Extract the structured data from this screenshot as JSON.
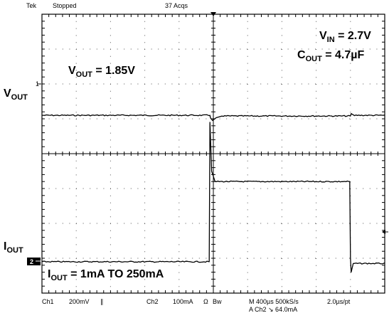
{
  "header": {
    "brand": "Tek",
    "status": "Stopped",
    "acquisitions": "37 Acqs"
  },
  "footer": {
    "line1": [
      "Ch1",
      "200mV",
      "∥",
      "Ch2",
      "100mA",
      "Ω",
      "Bw",
      "M 400µs 500kS/s",
      "2.0µs/pt"
    ],
    "line2": "A  Ch2  ↘  64.0mA"
  },
  "labels": {
    "vout_level": {
      "prefix": "V",
      "sub": "OUT",
      "suffix": " = 1.85V"
    },
    "vin": {
      "prefix": "V",
      "sub": "IN",
      "suffix": " = 2.7V"
    },
    "cout": {
      "prefix": "C",
      "sub": "OUT",
      "suffix": " = 4.7µF"
    },
    "vout_axis": {
      "prefix": "V",
      "sub": "OUT"
    },
    "iout_axis": {
      "prefix": "I",
      "sub": "OUT"
    },
    "iout_step": {
      "prefix": "I",
      "sub": "OUT",
      "suffix": " = 1mA TO 250mA"
    }
  },
  "markers": {
    "ch1": "1",
    "ch2": "2"
  },
  "chart_data": {
    "type": "line",
    "grid": true,
    "x_divisions": 10,
    "y_divisions": 8,
    "time_per_division": "400µs",
    "series": [
      {
        "name": "VOUT",
        "volts_per_div": "200mV",
        "points": [
          [
            0,
            1.1
          ],
          [
            4.9,
            1.1
          ],
          [
            4.92,
            1.02
          ],
          [
            4.98,
            0.95
          ],
          [
            5.08,
            1.03
          ],
          [
            5.25,
            1.08
          ],
          [
            9.0,
            1.08
          ],
          [
            9.02,
            1.15
          ],
          [
            9.12,
            1.09
          ],
          [
            10,
            1.1
          ]
        ]
      },
      {
        "name": "IOUT",
        "amps_per_div": "100mA",
        "points": [
          [
            0,
            -3.1
          ],
          [
            4.88,
            -3.1
          ],
          [
            4.9,
            0.9
          ],
          [
            4.95,
            -0.5
          ],
          [
            5.05,
            -0.75
          ],
          [
            10,
            -0.75
          ]
        ],
        "alternate_segment": {
          "points": [
            [
              5.05,
              -0.8
            ],
            [
              8.98,
              -0.8
            ],
            [
              9.0,
              -3.0
            ],
            [
              9.02,
              -3.4
            ],
            [
              9.08,
              -3.15
            ],
            [
              10,
              -3.15
            ]
          ]
        }
      }
    ]
  }
}
